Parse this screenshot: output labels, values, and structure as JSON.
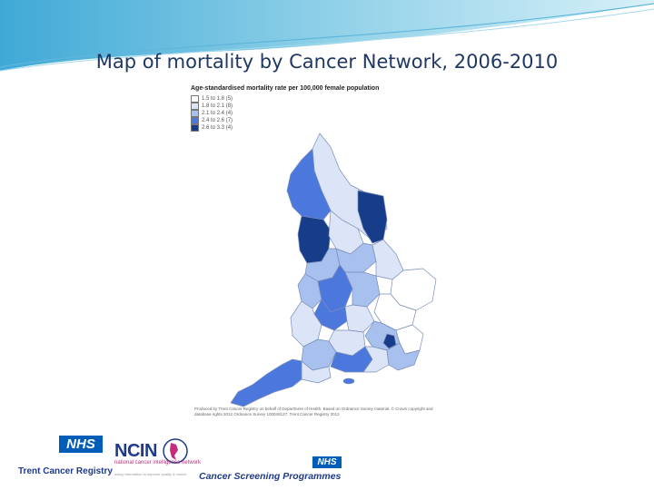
{
  "slide": {
    "title": "Map of mortality by Cancer Network, 2006-2010"
  },
  "map": {
    "legend_title": "Age-standardised mortality rate per 100,000 female population",
    "legend": [
      {
        "label": "1.5 to 1.8",
        "count": "(5)",
        "color": "#ffffff"
      },
      {
        "label": "1.8 to 2.1",
        "count": "(8)",
        "color": "#dbe5f7"
      },
      {
        "label": "2.1 to 2.4",
        "count": "(4)",
        "color": "#a8c0ee"
      },
      {
        "label": "2.4 to 2.6",
        "count": "(7)",
        "color": "#4c78dd"
      },
      {
        "label": "2.6 to 3.3",
        "count": "(4)",
        "color": "#173d8a"
      }
    ],
    "credit": "Produced by Trent Cancer Registry on behalf of Department of Health. Based on Ordnance Survey material. © Crown copyright and database rights 2012 Ordnance Survey 100049127. Trent Cancer Registry 2012"
  },
  "logos": {
    "nhs": "NHS",
    "trent": "Trent Cancer Registry",
    "ncin": "NCIN",
    "ncin_sub": "national cancer intelligence network",
    "ncin_sub2": "using information to improve quality & choice",
    "csp": "Cancer Screening Programmes"
  }
}
